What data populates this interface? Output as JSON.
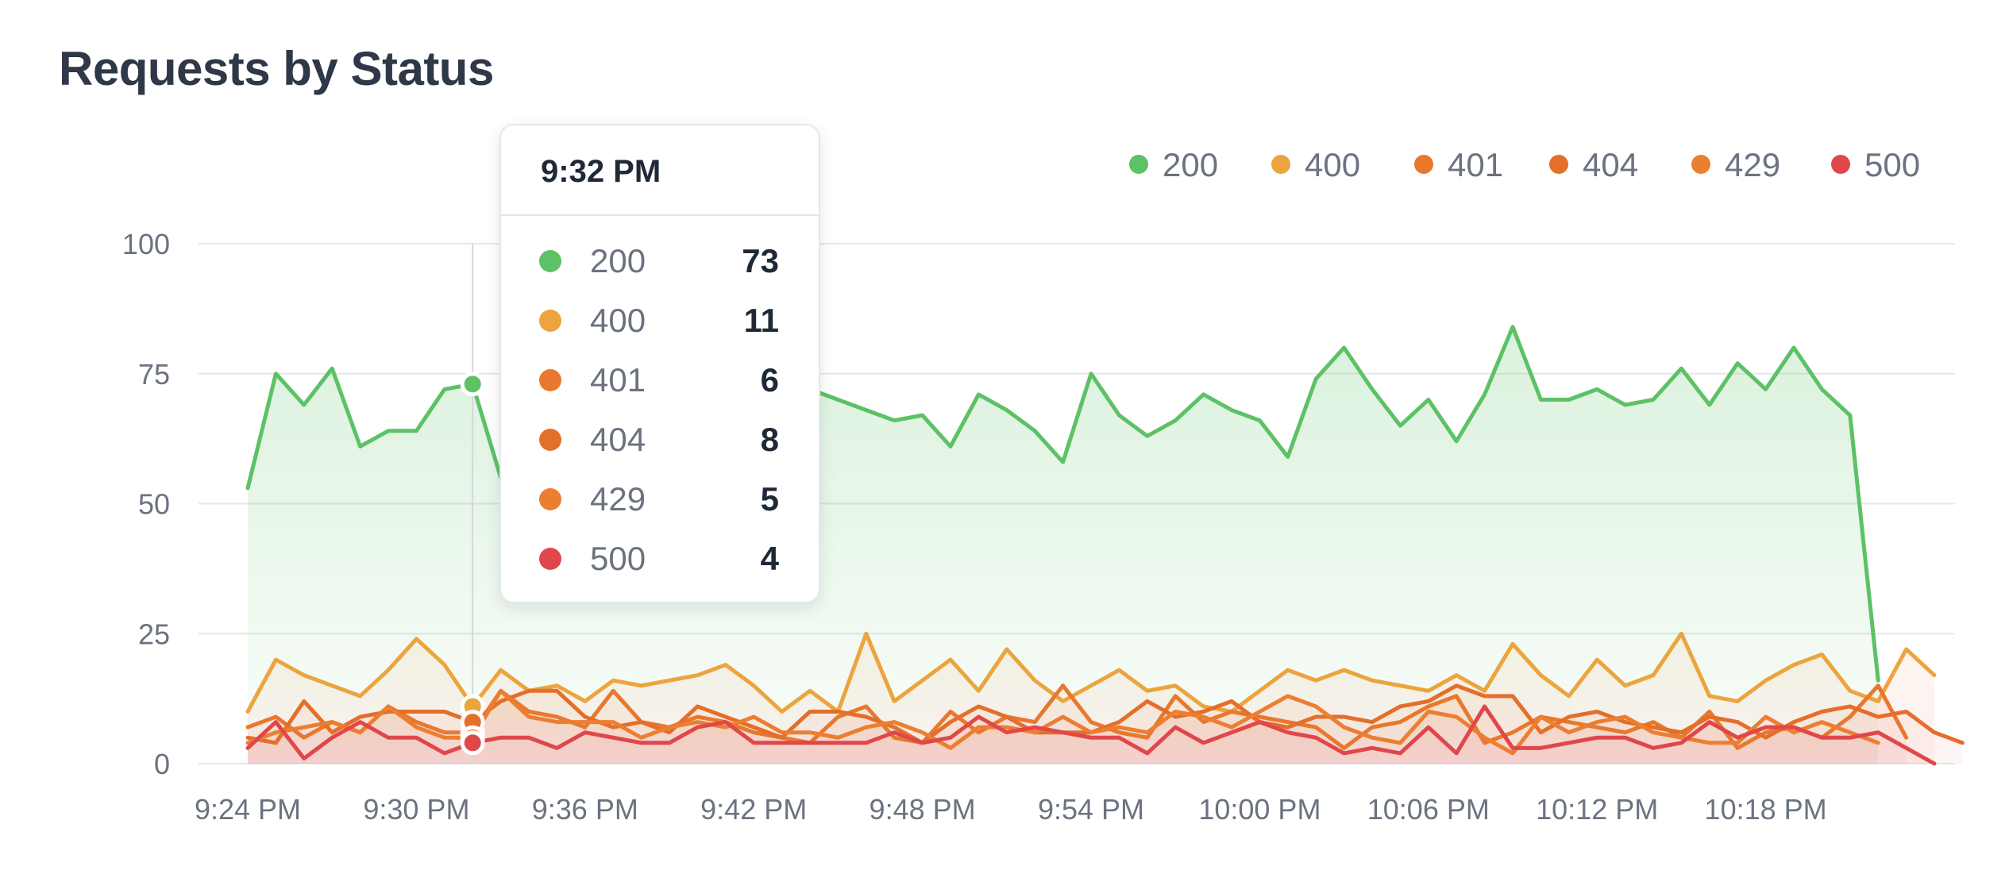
{
  "chart_data": {
    "type": "line",
    "title": "Requests by Status",
    "xlabel": "",
    "ylabel": "",
    "ylim": [
      0,
      100
    ],
    "yticks": [
      "0",
      "25",
      "50",
      "75",
      "100"
    ],
    "x_tick_labels": [
      "9:24 PM",
      "9:30 PM",
      "9:36 PM",
      "9:42 PM",
      "9:48 PM",
      "9:54 PM",
      "10:00 PM",
      "10:06 PM",
      "10:12 PM",
      "10:18 PM"
    ],
    "x_tick_indices": [
      0,
      6,
      12,
      18,
      24,
      30,
      36,
      42,
      48,
      54
    ],
    "grid": true,
    "legend_position": "top-right",
    "series": [
      {
        "name": "200",
        "color": "#5cc265",
        "values": [
          53,
          75,
          69,
          76,
          61,
          64,
          64,
          72,
          73,
          55,
          50,
          59,
          73,
          71,
          70,
          68,
          76,
          74,
          73,
          65,
          72,
          70,
          68,
          66,
          67,
          61,
          71,
          68,
          64,
          58,
          75,
          67,
          63,
          66,
          71,
          68,
          66,
          59,
          74,
          80,
          72,
          65,
          70,
          62,
          71,
          84,
          70,
          70,
          72,
          69,
          70,
          76,
          69,
          77,
          72,
          80,
          72,
          67,
          16
        ]
      },
      {
        "name": "400",
        "color": "#eca43e",
        "values": [
          10,
          20,
          17,
          15,
          13,
          18,
          24,
          19,
          11,
          18,
          14,
          15,
          12,
          16,
          15,
          16,
          17,
          19,
          15,
          10,
          14,
          10,
          25,
          12,
          16,
          20,
          14,
          22,
          16,
          12,
          15,
          18,
          14,
          15,
          11,
          10,
          14,
          18,
          16,
          18,
          16,
          15,
          14,
          17,
          14,
          23,
          17,
          13,
          20,
          15,
          17,
          25,
          13,
          12,
          16,
          19,
          21,
          14,
          12,
          22,
          17
        ]
      },
      {
        "name": "401",
        "color": "#e8782e",
        "values": [
          7,
          9,
          5,
          8,
          6,
          11,
          8,
          6,
          6,
          14,
          10,
          9,
          7,
          14,
          8,
          7,
          9,
          8,
          6,
          5,
          4,
          9,
          11,
          5,
          4,
          10,
          6,
          9,
          8,
          15,
          8,
          6,
          5,
          13,
          8,
          10,
          9,
          8,
          7,
          3,
          7,
          8,
          11,
          13,
          4,
          6,
          9,
          8,
          7,
          6,
          8,
          5,
          10,
          3,
          6,
          7,
          5,
          9,
          15,
          5
        ]
      },
      {
        "name": "404",
        "color": "#e46f2a",
        "values": [
          5,
          4,
          12,
          6,
          9,
          10,
          10,
          10,
          8,
          12,
          14,
          14,
          9,
          7,
          8,
          6,
          11,
          9,
          7,
          5,
          10,
          10,
          9,
          7,
          4,
          8,
          11,
          9,
          6,
          6,
          6,
          8,
          12,
          9,
          10,
          12,
          8,
          7,
          9,
          9,
          8,
          11,
          12,
          15,
          13,
          13,
          6,
          9,
          10,
          8,
          7,
          6,
          9,
          8,
          5,
          8,
          10,
          11,
          9,
          10,
          6,
          4
        ]
      },
      {
        "name": "429",
        "color": "#ec7e32",
        "values": [
          4,
          6,
          7,
          8,
          6,
          11,
          7,
          5,
          5,
          14,
          9,
          8,
          8,
          8,
          5,
          7,
          8,
          7,
          9,
          6,
          6,
          5,
          7,
          8,
          6,
          3,
          7,
          7,
          6,
          9,
          6,
          7,
          6,
          10,
          9,
          7,
          10,
          13,
          11,
          7,
          5,
          4,
          10,
          9,
          5,
          2,
          9,
          6,
          8,
          9,
          6,
          5,
          4,
          4,
          9,
          6,
          8,
          6,
          4
        ]
      },
      {
        "name": "500",
        "color": "#e0474a",
        "values": [
          3,
          8,
          1,
          5,
          8,
          5,
          5,
          2,
          4,
          5,
          5,
          3,
          6,
          5,
          4,
          4,
          7,
          8,
          4,
          4,
          4,
          4,
          4,
          6,
          4,
          5,
          9,
          6,
          7,
          6,
          5,
          5,
          2,
          7,
          4,
          6,
          8,
          6,
          5,
          2,
          3,
          2,
          7,
          2,
          11,
          3,
          3,
          4,
          5,
          5,
          3,
          4,
          8,
          5,
          7,
          7,
          5,
          5,
          6,
          3,
          0
        ]
      }
    ]
  },
  "tooltip": {
    "time": "9:32 PM",
    "index": 8,
    "rows": [
      {
        "label": "200",
        "value": "73",
        "color": "#5cc265"
      },
      {
        "label": "400",
        "value": "11",
        "color": "#eca43e"
      },
      {
        "label": "401",
        "value": "6",
        "color": "#e8782e"
      },
      {
        "label": "404",
        "value": "8",
        "color": "#e46f2a"
      },
      {
        "label": "429",
        "value": "5",
        "color": "#ec7e32"
      },
      {
        "label": "500",
        "value": "4",
        "color": "#e0474a"
      }
    ]
  },
  "colors": {
    "grid": "#e5e7eb",
    "axis_text": "#6b7280",
    "title": "#2f3848",
    "crosshair": "#d4d7dd"
  }
}
